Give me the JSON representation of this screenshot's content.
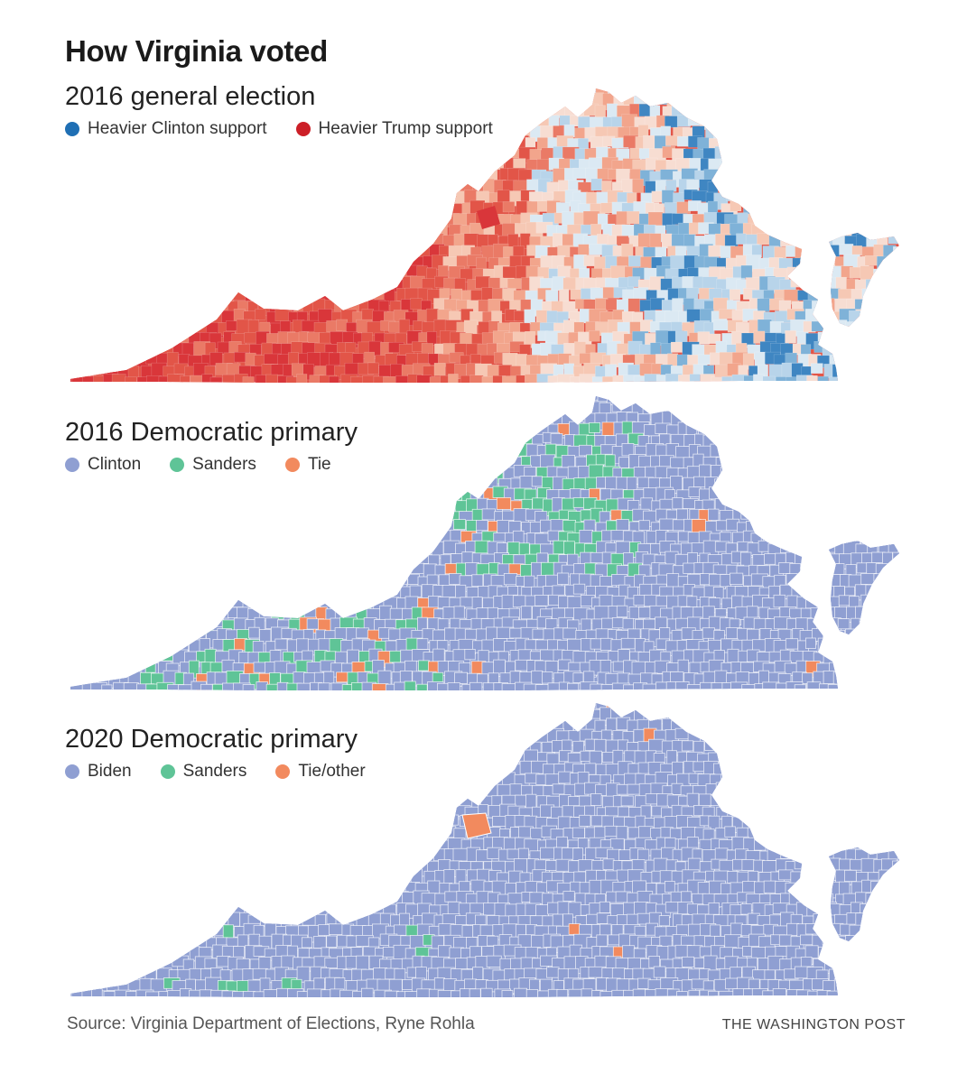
{
  "title": "How Virginia voted",
  "maps": [
    {
      "id": "general-2016",
      "title": "2016 general election",
      "legend": [
        {
          "label": "Heavier Clinton support",
          "color": "#1f6fb4"
        },
        {
          "label": "Heavier Trump support",
          "color": "#cc1f27"
        }
      ],
      "fill_palette": [
        "#d9363a",
        "#e25548",
        "#ea7a66",
        "#f2a58c",
        "#f6c8b4",
        "#f7ddd2",
        "#dbe9f3",
        "#b8d4ea",
        "#7fb2d8",
        "#3f86c2"
      ],
      "base_color": "#e25548",
      "boundary_color": "#ffffff"
    },
    {
      "id": "dem-primary-2016",
      "title": "2016 Democratic primary",
      "legend": [
        {
          "label": "Clinton",
          "color": "#8f9fd2"
        },
        {
          "label": "Sanders",
          "color": "#5fc497"
        },
        {
          "label": "Tie",
          "color": "#f28a5e"
        }
      ],
      "base_color": "#8f9fd2",
      "boundary_color": "#ffffff"
    },
    {
      "id": "dem-primary-2020",
      "title": "2020 Democratic primary",
      "legend": [
        {
          "label": "Biden",
          "color": "#8f9fd2"
        },
        {
          "label": "Sanders",
          "color": "#5fc497"
        },
        {
          "label": "Tie/other",
          "color": "#f28a5e"
        }
      ],
      "base_color": "#8f9fd2",
      "boundary_color": "#ffffff"
    }
  ],
  "source": "Source: Virginia Department of Elections, Ryne Rohla",
  "credit": "THE WASHINGTON POST"
}
